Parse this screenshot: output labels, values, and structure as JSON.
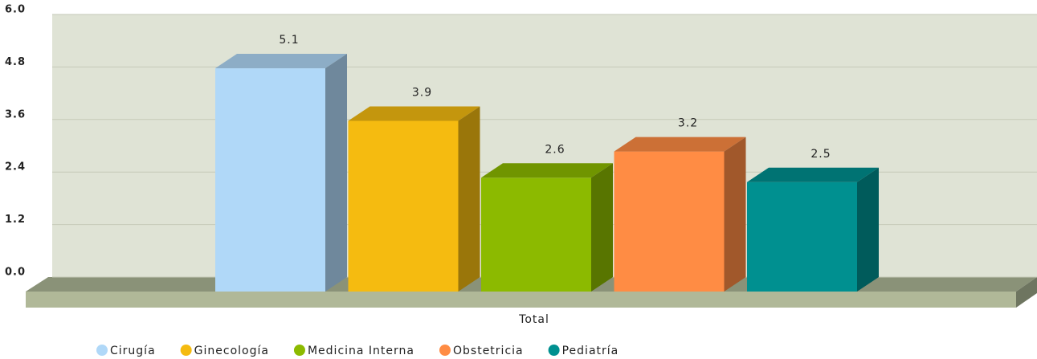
{
  "chart_data": {
    "type": "bar3d",
    "categories": [
      "Total"
    ],
    "series": [
      {
        "name": "Cirugía",
        "color": "#b0d8f8",
        "values": [
          5.1
        ]
      },
      {
        "name": "Ginecología",
        "color": "#f5bb10",
        "values": [
          3.9
        ]
      },
      {
        "name": "Medicina Interna",
        "color": "#8cba00",
        "values": [
          2.6
        ]
      },
      {
        "name": "Obstetricia",
        "color": "#ff8c44",
        "values": [
          3.2
        ]
      },
      {
        "name": "Pediatría",
        "color": "#009090",
        "values": [
          2.5
        ]
      }
    ],
    "ylim": [
      0,
      6
    ],
    "yticks": [
      {
        "value": 0,
        "label": "0.0"
      },
      1.2,
      2.4,
      3.6,
      4.8,
      {
        "value": 6,
        "label": "6.0"
      }
    ],
    "grid": true,
    "legend": "bottom"
  }
}
